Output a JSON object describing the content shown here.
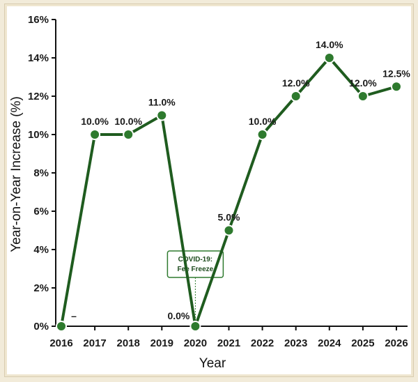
{
  "chart_data": {
    "type": "line",
    "categories": [
      "2016",
      "2017",
      "2018",
      "2019",
      "2020",
      "2021",
      "2022",
      "2023",
      "2024",
      "2025",
      "2026"
    ],
    "series": [
      {
        "values": [
          0.0,
          10.0,
          10.0,
          11.0,
          0.0,
          5.0,
          10.0,
          12.0,
          14.0,
          12.0,
          12.5
        ],
        "labels": [
          "",
          "10.0%",
          "10.0%",
          "11.0%",
          "0.0%",
          "5.0%",
          "10.0%",
          "12.0%",
          "14.0%",
          "12.0%",
          "12.5%"
        ],
        "color": "#1f5c1f"
      }
    ],
    "xlabel": "Year",
    "ylabel": "Year-on-Year Increase (%)",
    "ylim": [
      0,
      16
    ],
    "yticks": [
      0,
      2,
      4,
      6,
      8,
      10,
      12,
      14,
      16
    ],
    "ytick_labels": [
      "0%",
      "2%",
      "4%",
      "6%",
      "8%",
      "10%",
      "12%",
      "14%",
      "16%"
    ],
    "grid": false,
    "annotations": [
      {
        "x": "2020",
        "lines": [
          "COVID-19:",
          "Fee Freeze"
        ]
      },
      {
        "x": "2016",
        "text": "–"
      }
    ]
  },
  "colors": {
    "line": "#1f5c1f",
    "marker_fill": "#2e7a2e",
    "axis": "#111111",
    "annotation_border": "#2e7a2e",
    "page_background": "#f2ebd9"
  }
}
